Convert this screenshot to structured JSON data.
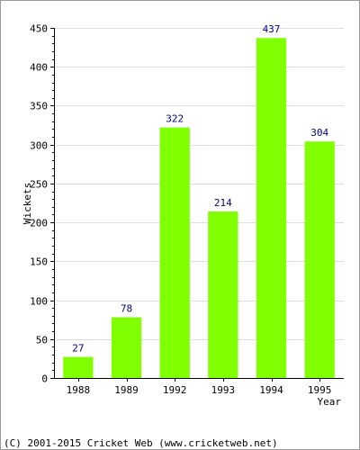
{
  "chart_data": {
    "type": "bar",
    "categories": [
      "1988",
      "1989",
      "1992",
      "1993",
      "1994",
      "1995"
    ],
    "values": [
      27,
      78,
      322,
      214,
      437,
      304
    ],
    "xlabel": "Year",
    "ylabel": "Wickets",
    "ylim": [
      0,
      450
    ],
    "yticks": [
      0,
      50,
      100,
      150,
      200,
      250,
      300,
      350,
      400,
      450
    ],
    "grid": true,
    "bar_color": "#80ff00",
    "data_label_color": "#000080"
  },
  "footer": {
    "text": "(C) 2001-2015 Cricket Web (www.cricketweb.net)"
  }
}
